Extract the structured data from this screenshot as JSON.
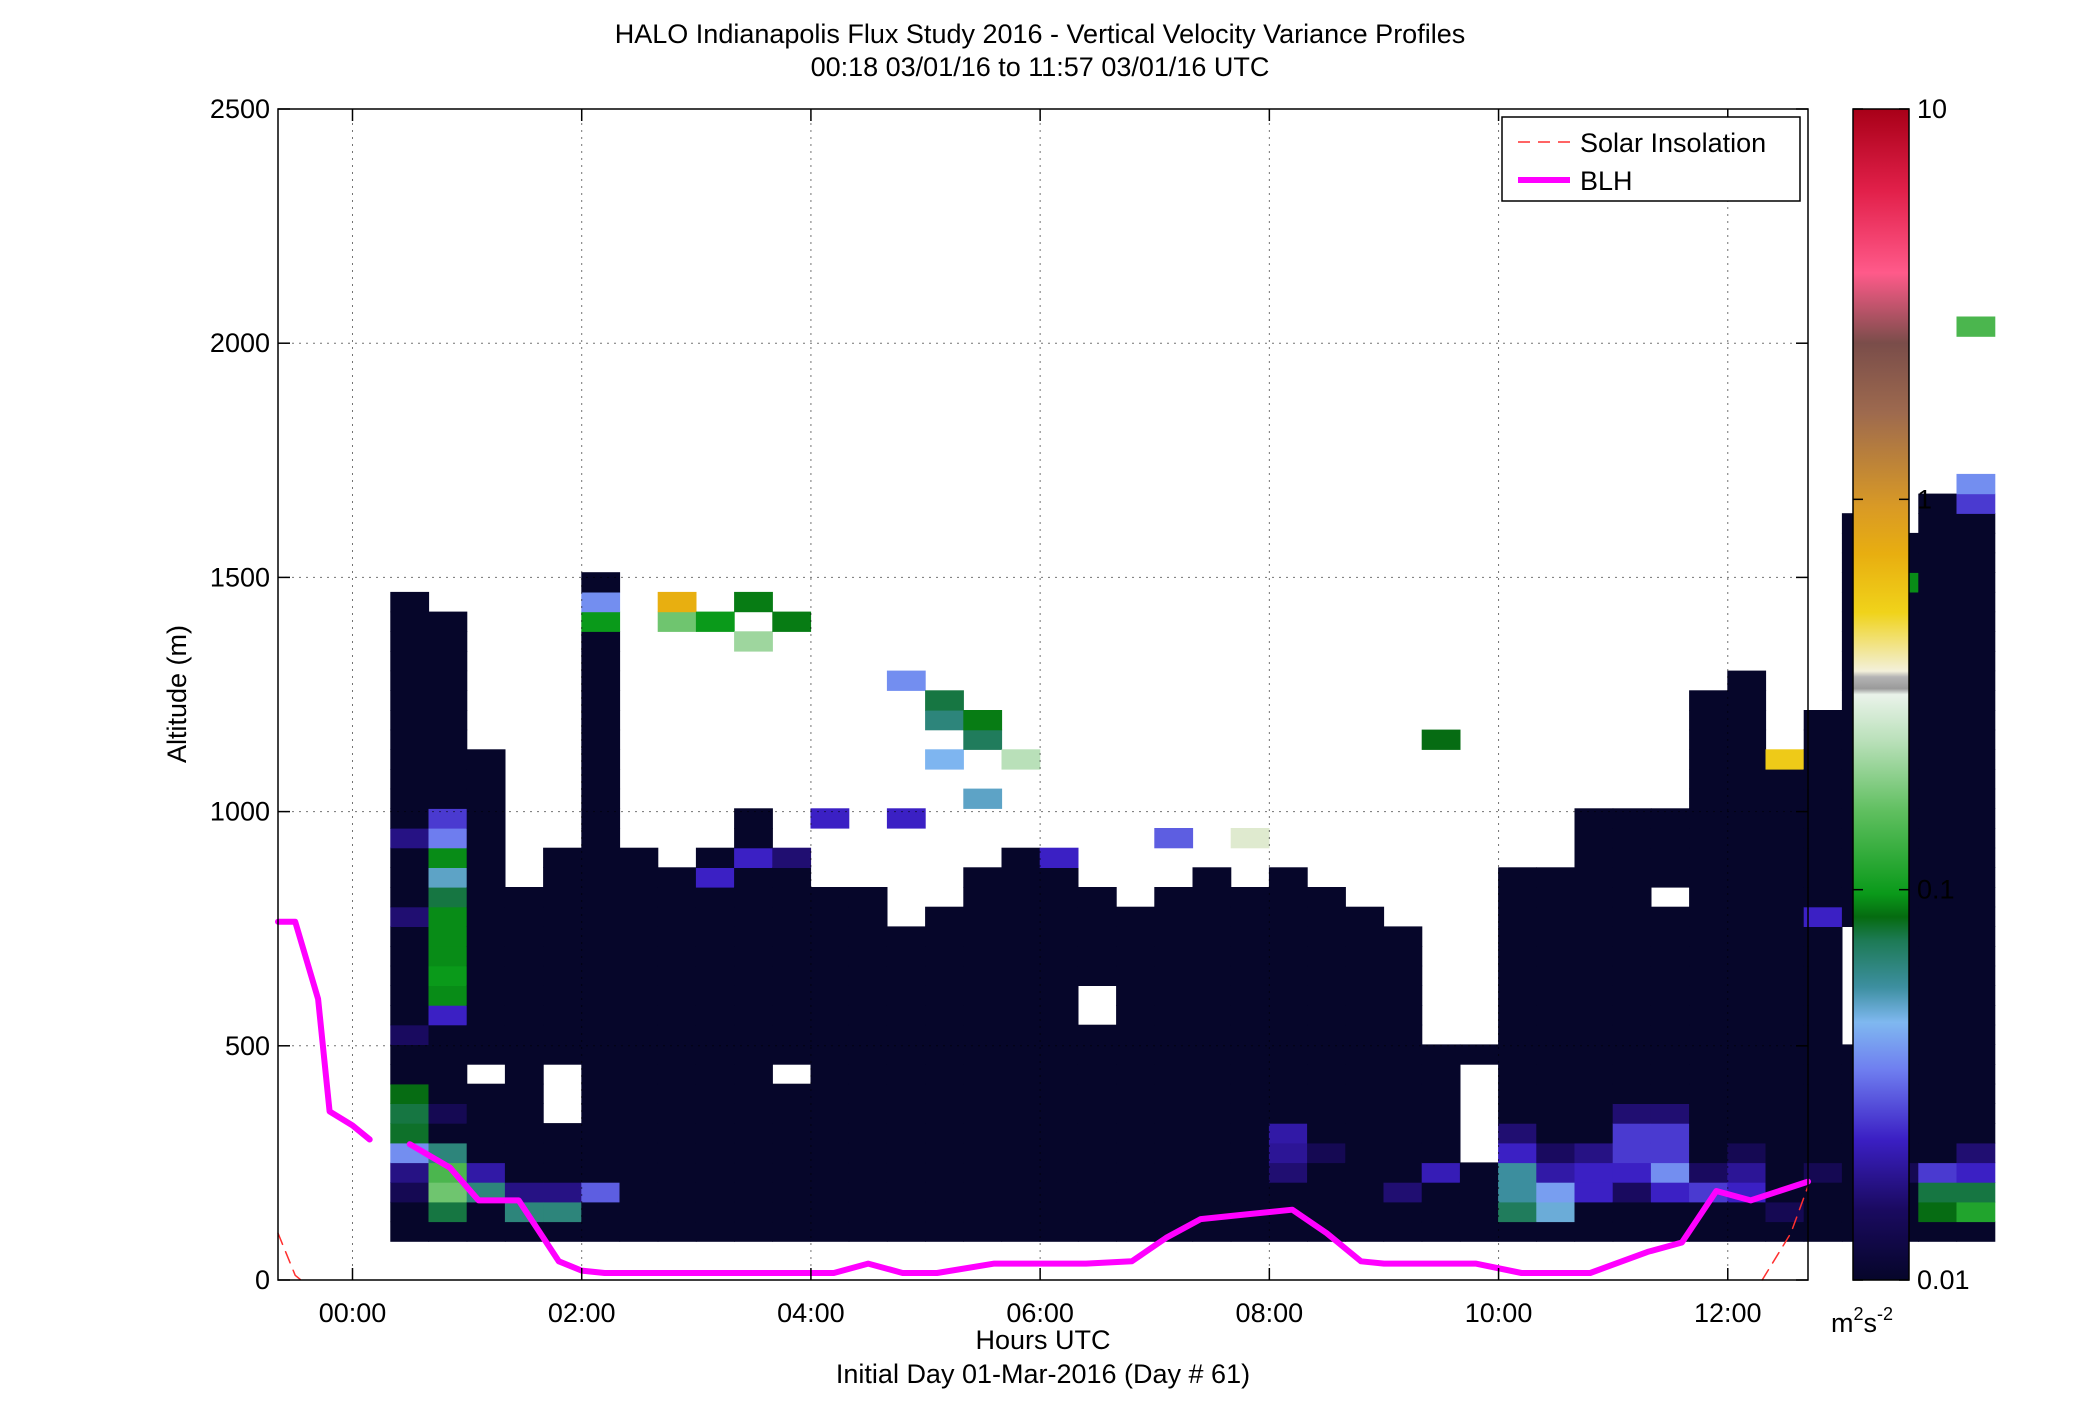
{
  "chart_data": {
    "type": "heatmap",
    "title": "HALO Indianapolis Flux Study 2016 - Vertical Velocity Variance Profiles",
    "subtitle": "00:18 03/01/16 to 11:57 03/01/16  UTC",
    "xlabel": "Hours UTC",
    "xlabel2": "Initial Day 01-Mar-2016 (Day # 61)",
    "ylabel": "Altitude (m)",
    "xlim": [
      -0.65,
      12.7
    ],
    "ylim": [
      0,
      2500
    ],
    "x_ticks": [
      0,
      2,
      4,
      6,
      8,
      10,
      12
    ],
    "x_tick_labels": [
      "00:00",
      "02:00",
      "04:00",
      "06:00",
      "08:00",
      "10:00",
      "12:00"
    ],
    "y_ticks": [
      0,
      500,
      1000,
      1500,
      2000,
      2500
    ],
    "y_tick_labels": [
      "0",
      "500",
      "1000",
      "1500",
      "2000",
      "2500"
    ],
    "grid": true,
    "legend_position": "top-right",
    "colorbar": {
      "scale": "log",
      "range": [
        0.01,
        10
      ],
      "ticks": [
        0.01,
        0.1,
        1,
        10
      ],
      "tick_labels": [
        "0.01",
        "0.1",
        "1",
        "10"
      ],
      "unit_base": "m",
      "unit_sup1": "2",
      "unit_mid": "s",
      "unit_sup2": "-2"
    },
    "heatmap": {
      "x_start": 0.33,
      "x_step": 0.3333,
      "y_start": 83,
      "y_step": 42,
      "value_unit": "m2s-2",
      "column_heights": [
        33,
        32,
        25,
        18,
        20,
        34,
        20,
        19,
        20,
        22,
        20,
        18,
        18,
        16,
        17,
        19,
        20,
        20,
        18,
        17,
        18,
        19,
        18,
        19,
        18,
        17,
        16,
        10,
        10,
        19,
        19,
        22,
        22,
        22,
        28,
        29,
        25,
        27,
        37,
        36,
        38,
        39
      ],
      "empty": [
        [
          2,
          8
        ],
        [
          4,
          6
        ],
        [
          4,
          7
        ],
        [
          4,
          8
        ],
        [
          10,
          8
        ],
        [
          18,
          11
        ],
        [
          18,
          12
        ],
        [
          28,
          4
        ],
        [
          28,
          5
        ],
        [
          28,
          6
        ],
        [
          28,
          7
        ],
        [
          28,
          8
        ],
        [
          33,
          17
        ],
        [
          38,
          10
        ],
        [
          38,
          11
        ],
        [
          38,
          12
        ],
        [
          38,
          13
        ],
        [
          38,
          14
        ],
        [
          38,
          15
        ]
      ],
      "cells": [
        [
          0,
          2,
          0.013
        ],
        [
          0,
          3,
          0.016
        ],
        [
          0,
          4,
          0.03
        ],
        [
          0,
          5,
          0.065
        ],
        [
          0,
          6,
          0.06
        ],
        [
          0,
          7,
          0.07
        ],
        [
          0,
          10,
          0.014
        ],
        [
          0,
          16,
          0.015
        ],
        [
          0,
          20,
          0.016
        ],
        [
          1,
          1,
          0.06
        ],
        [
          1,
          2,
          0.15
        ],
        [
          1,
          3,
          0.13
        ],
        [
          1,
          4,
          0.05
        ],
        [
          1,
          6,
          0.013
        ],
        [
          1,
          11,
          0.02
        ],
        [
          1,
          12,
          0.09
        ],
        [
          1,
          13,
          0.1
        ],
        [
          1,
          14,
          0.09
        ],
        [
          1,
          15,
          0.09
        ],
        [
          1,
          16,
          0.09
        ],
        [
          1,
          17,
          0.06
        ],
        [
          1,
          18,
          0.04
        ],
        [
          1,
          19,
          0.09
        ],
        [
          1,
          20,
          0.028
        ],
        [
          1,
          21,
          0.022
        ],
        [
          2,
          2,
          0.05
        ],
        [
          2,
          3,
          0.018
        ],
        [
          3,
          1,
          0.05
        ],
        [
          3,
          2,
          0.016
        ],
        [
          4,
          1,
          0.05
        ],
        [
          4,
          2,
          0.016
        ],
        [
          5,
          2,
          0.025
        ],
        [
          5,
          31,
          0.1
        ],
        [
          5,
          32,
          0.03
        ],
        [
          7,
          31,
          0.15
        ],
        [
          7,
          32,
          0.7
        ],
        [
          8,
          18,
          0.02
        ],
        [
          8,
          31,
          0.1
        ],
        [
          9,
          19,
          0.02
        ],
        [
          9,
          30,
          0.18
        ],
        [
          9,
          32,
          0.08
        ],
        [
          10,
          19,
          0.015
        ],
        [
          10,
          31,
          0.08
        ],
        [
          11,
          21,
          0.02
        ],
        [
          13,
          21,
          0.02
        ],
        [
          13,
          28,
          0.03
        ],
        [
          14,
          24,
          0.035
        ],
        [
          14,
          26,
          0.05
        ],
        [
          14,
          27,
          0.06
        ],
        [
          15,
          22,
          0.04
        ],
        [
          15,
          25,
          0.055
        ],
        [
          15,
          26,
          0.08
        ],
        [
          16,
          24,
          0.2
        ],
        [
          17,
          19,
          0.02
        ],
        [
          20,
          20,
          0.025
        ],
        [
          22,
          20,
          0.25
        ],
        [
          23,
          3,
          0.015
        ],
        [
          23,
          4,
          0.017
        ],
        [
          23,
          5,
          0.018
        ],
        [
          24,
          4,
          0.013
        ],
        [
          26,
          2,
          0.015
        ],
        [
          27,
          3,
          0.019
        ],
        [
          27,
          25,
          0.07
        ],
        [
          29,
          1,
          0.055
        ],
        [
          29,
          2,
          0.045
        ],
        [
          29,
          3,
          0.045
        ],
        [
          29,
          4,
          0.02
        ],
        [
          29,
          5,
          0.015
        ],
        [
          30,
          1,
          0.038
        ],
        [
          30,
          2,
          0.032
        ],
        [
          30,
          3,
          0.018
        ],
        [
          30,
          4,
          0.014
        ],
        [
          31,
          2,
          0.02
        ],
        [
          31,
          3,
          0.02
        ],
        [
          31,
          4,
          0.016
        ],
        [
          32,
          2,
          0.014
        ],
        [
          32,
          3,
          0.02
        ],
        [
          32,
          4,
          0.022
        ],
        [
          32,
          5,
          0.022
        ],
        [
          32,
          6,
          0.015
        ],
        [
          33,
          2,
          0.02
        ],
        [
          33,
          3,
          0.03
        ],
        [
          33,
          4,
          0.022
        ],
        [
          33,
          5,
          0.022
        ],
        [
          33,
          6,
          0.015
        ],
        [
          34,
          2,
          0.022
        ],
        [
          34,
          3,
          0.014
        ],
        [
          35,
          2,
          0.02
        ],
        [
          35,
          3,
          0.017
        ],
        [
          35,
          4,
          0.013
        ],
        [
          36,
          24,
          0.5
        ],
        [
          36,
          1,
          0.013
        ],
        [
          37,
          3,
          0.013
        ],
        [
          37,
          16,
          0.02
        ],
        [
          39,
          3,
          0.013
        ],
        [
          39,
          33,
          0.09
        ],
        [
          40,
          1,
          0.07
        ],
        [
          40,
          2,
          0.06
        ],
        [
          40,
          3,
          0.022
        ],
        [
          41,
          1,
          0.11
        ],
        [
          41,
          2,
          0.06
        ],
        [
          41,
          3,
          0.02
        ],
        [
          41,
          4,
          0.015
        ],
        [
          41,
          37,
          0.022
        ],
        [
          41,
          38,
          0.03
        ],
        [
          41,
          46,
          0.13
        ]
      ]
    },
    "series": [
      {
        "name": "BLH",
        "color": "#ff00ff",
        "x": [
          -0.65,
          -0.5,
          -0.3,
          -0.2,
          0,
          0.15
        ],
        "y": [
          765,
          765,
          600,
          360,
          330,
          300
        ]
      },
      {
        "name": "BLH",
        "color": "#ff00ff",
        "x": [
          0.5,
          0.85,
          1.1,
          1.45,
          1.8,
          2,
          2.2,
          2.4,
          3,
          3.5,
          4.2,
          4.5,
          4.8,
          5.1,
          5.6,
          6,
          6.4,
          6.8,
          7.1,
          7.4,
          7.8,
          8.2,
          8.5,
          8.8,
          9,
          9.4,
          9.8,
          10.2,
          10.4,
          10.8,
          11.3,
          11.6,
          11.9,
          12.2,
          12.7
        ],
        "y": [
          290,
          240,
          170,
          170,
          40,
          20,
          15,
          15,
          15,
          15,
          15,
          35,
          15,
          15,
          35,
          35,
          35,
          40,
          90,
          130,
          140,
          150,
          100,
          40,
          35,
          35,
          35,
          15,
          15,
          15,
          60,
          80,
          190,
          170,
          210
        ]
      },
      {
        "name": "Solar Insolation",
        "color": "#ff3030",
        "x": [
          -0.65,
          -0.5,
          -0.45
        ],
        "y": [
          100,
          10,
          0
        ]
      },
      {
        "name": "Solar Insolation",
        "color": "#ff3030",
        "x": [
          12.3,
          12.55,
          12.7
        ],
        "y": [
          0,
          100,
          200
        ]
      }
    ],
    "legend": [
      {
        "name": "Solar Insolation",
        "color": "#ff3030",
        "style": "dashed"
      },
      {
        "name": "BLH",
        "color": "#ff00ff",
        "style": "solid"
      }
    ]
  }
}
